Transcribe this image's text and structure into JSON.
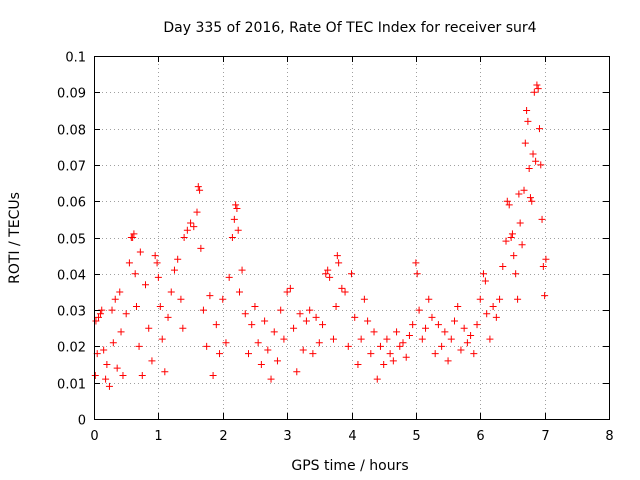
{
  "chart_data": {
    "type": "scatter",
    "title": "Day 335 of 2016, Rate Of TEC Index for receiver sur4",
    "xlabel": "GPS time / hours",
    "ylabel": "ROTI / TECUs",
    "xlim": [
      0,
      8
    ],
    "ylim": [
      0,
      0.1
    ],
    "x_ticks": [
      "0",
      "1",
      "2",
      "3",
      "4",
      "5",
      "6",
      "7",
      "8"
    ],
    "y_ticks": [
      "0",
      "0.01",
      "0.02",
      "0.03",
      "0.04",
      "0.05",
      "0.06",
      "0.07",
      "0.08",
      "0.09",
      "0.1"
    ],
    "grid": true,
    "marker": "+",
    "series": [
      {
        "name": "ROTI",
        "color": "#ff0000",
        "points": [
          [
            0.02,
            0.012
          ],
          [
            0.03,
            0.027
          ],
          [
            0.05,
            0.018
          ],
          [
            0.07,
            0.028
          ],
          [
            0.1,
            0.029
          ],
          [
            0.12,
            0.03
          ],
          [
            0.15,
            0.019
          ],
          [
            0.18,
            0.011
          ],
          [
            0.2,
            0.015
          ],
          [
            0.24,
            0.009
          ],
          [
            0.28,
            0.03
          ],
          [
            0.3,
            0.021
          ],
          [
            0.33,
            0.033
          ],
          [
            0.36,
            0.014
          ],
          [
            0.4,
            0.035
          ],
          [
            0.42,
            0.024
          ],
          [
            0.45,
            0.012
          ],
          [
            0.5,
            0.029
          ],
          [
            0.55,
            0.043
          ],
          [
            0.58,
            0.05
          ],
          [
            0.6,
            0.05
          ],
          [
            0.62,
            0.051
          ],
          [
            0.64,
            0.04
          ],
          [
            0.66,
            0.031
          ],
          [
            0.7,
            0.02
          ],
          [
            0.72,
            0.046
          ],
          [
            0.75,
            0.012
          ],
          [
            0.8,
            0.037
          ],
          [
            0.85,
            0.025
          ],
          [
            0.9,
            0.016
          ],
          [
            0.95,
            0.045
          ],
          [
            0.98,
            0.043
          ],
          [
            1.0,
            0.039
          ],
          [
            1.03,
            0.031
          ],
          [
            1.06,
            0.022
          ],
          [
            1.1,
            0.013
          ],
          [
            1.15,
            0.028
          ],
          [
            1.2,
            0.035
          ],
          [
            1.25,
            0.041
          ],
          [
            1.3,
            0.044
          ],
          [
            1.35,
            0.033
          ],
          [
            1.38,
            0.025
          ],
          [
            1.4,
            0.05
          ],
          [
            1.45,
            0.052
          ],
          [
            1.5,
            0.054
          ],
          [
            1.55,
            0.053
          ],
          [
            1.6,
            0.057
          ],
          [
            1.62,
            0.064
          ],
          [
            1.64,
            0.063
          ],
          [
            1.66,
            0.047
          ],
          [
            1.7,
            0.03
          ],
          [
            1.75,
            0.02
          ],
          [
            1.8,
            0.034
          ],
          [
            1.85,
            0.012
          ],
          [
            1.9,
            0.026
          ],
          [
            1.95,
            0.018
          ],
          [
            2.0,
            0.033
          ],
          [
            2.05,
            0.021
          ],
          [
            2.1,
            0.039
          ],
          [
            2.15,
            0.05
          ],
          [
            2.18,
            0.055
          ],
          [
            2.2,
            0.059
          ],
          [
            2.22,
            0.058
          ],
          [
            2.24,
            0.052
          ],
          [
            2.26,
            0.035
          ],
          [
            2.3,
            0.041
          ],
          [
            2.35,
            0.029
          ],
          [
            2.4,
            0.018
          ],
          [
            2.45,
            0.026
          ],
          [
            2.5,
            0.031
          ],
          [
            2.55,
            0.021
          ],
          [
            2.6,
            0.015
          ],
          [
            2.65,
            0.027
          ],
          [
            2.7,
            0.019
          ],
          [
            2.75,
            0.011
          ],
          [
            2.8,
            0.024
          ],
          [
            2.85,
            0.016
          ],
          [
            2.9,
            0.03
          ],
          [
            2.95,
            0.022
          ],
          [
            3.0,
            0.035
          ],
          [
            3.05,
            0.036
          ],
          [
            3.1,
            0.025
          ],
          [
            3.15,
            0.013
          ],
          [
            3.2,
            0.029
          ],
          [
            3.25,
            0.019
          ],
          [
            3.3,
            0.027
          ],
          [
            3.35,
            0.03
          ],
          [
            3.4,
            0.018
          ],
          [
            3.45,
            0.028
          ],
          [
            3.5,
            0.021
          ],
          [
            3.55,
            0.026
          ],
          [
            3.6,
            0.04
          ],
          [
            3.63,
            0.041
          ],
          [
            3.66,
            0.039
          ],
          [
            3.72,
            0.022
          ],
          [
            3.76,
            0.031
          ],
          [
            3.78,
            0.045
          ],
          [
            3.8,
            0.043
          ],
          [
            3.85,
            0.036
          ],
          [
            3.9,
            0.035
          ],
          [
            3.95,
            0.02
          ],
          [
            4.0,
            0.04
          ],
          [
            4.05,
            0.028
          ],
          [
            4.1,
            0.015
          ],
          [
            4.15,
            0.022
          ],
          [
            4.2,
            0.033
          ],
          [
            4.25,
            0.027
          ],
          [
            4.3,
            0.018
          ],
          [
            4.35,
            0.024
          ],
          [
            4.4,
            0.011
          ],
          [
            4.45,
            0.02
          ],
          [
            4.5,
            0.015
          ],
          [
            4.55,
            0.022
          ],
          [
            4.6,
            0.018
          ],
          [
            4.65,
            0.016
          ],
          [
            4.7,
            0.024
          ],
          [
            4.75,
            0.02
          ],
          [
            4.8,
            0.021
          ],
          [
            4.85,
            0.017
          ],
          [
            4.9,
            0.023
          ],
          [
            4.95,
            0.026
          ],
          [
            5.0,
            0.043
          ],
          [
            5.02,
            0.04
          ],
          [
            5.05,
            0.03
          ],
          [
            5.1,
            0.022
          ],
          [
            5.15,
            0.025
          ],
          [
            5.2,
            0.033
          ],
          [
            5.25,
            0.028
          ],
          [
            5.3,
            0.018
          ],
          [
            5.35,
            0.026
          ],
          [
            5.4,
            0.02
          ],
          [
            5.45,
            0.024
          ],
          [
            5.5,
            0.016
          ],
          [
            5.55,
            0.022
          ],
          [
            5.6,
            0.027
          ],
          [
            5.65,
            0.031
          ],
          [
            5.7,
            0.019
          ],
          [
            5.75,
            0.025
          ],
          [
            5.8,
            0.021
          ],
          [
            5.85,
            0.023
          ],
          [
            5.9,
            0.018
          ],
          [
            5.95,
            0.026
          ],
          [
            6.0,
            0.033
          ],
          [
            6.05,
            0.04
          ],
          [
            6.08,
            0.038
          ],
          [
            6.1,
            0.029
          ],
          [
            6.15,
            0.022
          ],
          [
            6.2,
            0.031
          ],
          [
            6.25,
            0.028
          ],
          [
            6.3,
            0.033
          ],
          [
            6.35,
            0.042
          ],
          [
            6.4,
            0.049
          ],
          [
            6.42,
            0.06
          ],
          [
            6.45,
            0.059
          ],
          [
            6.48,
            0.05
          ],
          [
            6.5,
            0.051
          ],
          [
            6.52,
            0.045
          ],
          [
            6.55,
            0.04
          ],
          [
            6.58,
            0.033
          ],
          [
            6.6,
            0.062
          ],
          [
            6.62,
            0.054
          ],
          [
            6.65,
            0.048
          ],
          [
            6.68,
            0.063
          ],
          [
            6.7,
            0.076
          ],
          [
            6.72,
            0.085
          ],
          [
            6.74,
            0.082
          ],
          [
            6.76,
            0.069
          ],
          [
            6.78,
            0.061
          ],
          [
            6.8,
            0.06
          ],
          [
            6.82,
            0.073
          ],
          [
            6.84,
            0.09
          ],
          [
            6.86,
            0.071
          ],
          [
            6.88,
            0.092
          ],
          [
            6.9,
            0.091
          ],
          [
            6.92,
            0.08
          ],
          [
            6.94,
            0.07
          ],
          [
            6.96,
            0.055
          ],
          [
            6.98,
            0.042
          ],
          [
            7.0,
            0.034
          ],
          [
            7.02,
            0.044
          ]
        ]
      }
    ]
  }
}
